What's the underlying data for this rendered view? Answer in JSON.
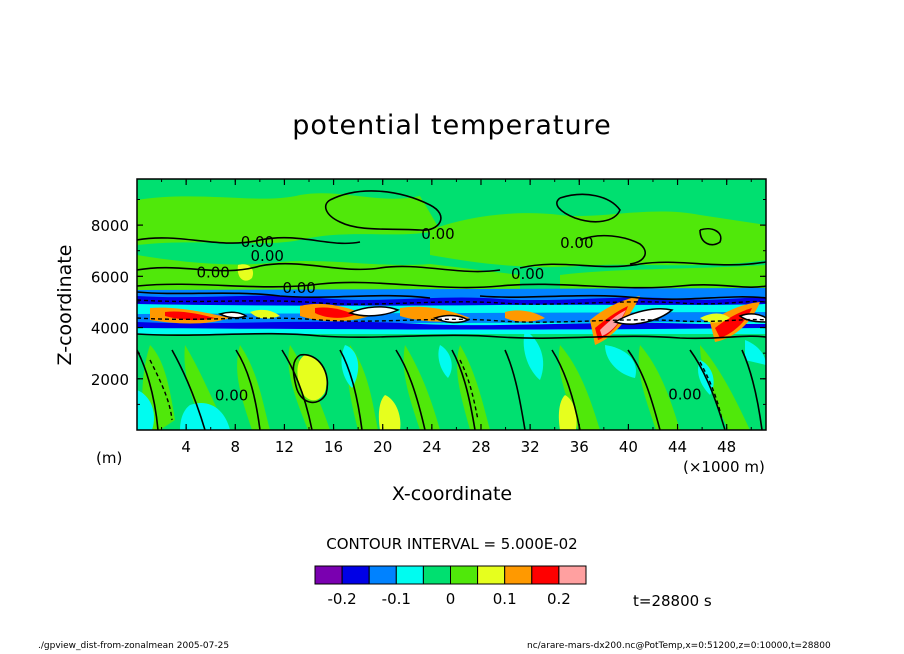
{
  "chart_data": {
    "type": "heatmap",
    "title": "potential temperature",
    "xlabel": "X-coordinate",
    "ylabel": "Z-coordinate",
    "x_unit_left": "(m)",
    "x_unit_right": "(×1000 m)",
    "x_ticks": [
      "4",
      "8",
      "12",
      "16",
      "20",
      "24",
      "28",
      "32",
      "36",
      "40",
      "44",
      "48"
    ],
    "x_tick_values": [
      4,
      8,
      12,
      16,
      20,
      24,
      28,
      32,
      36,
      40,
      44,
      48
    ],
    "xlim": [
      0,
      51.2
    ],
    "y_ticks": [
      "2000",
      "4000",
      "6000",
      "8000"
    ],
    "y_tick_values": [
      2000,
      4000,
      6000,
      8000
    ],
    "ylim": [
      0,
      9800
    ],
    "contour_labels": [
      {
        "text": "0.00",
        "x": 24.5,
        "z": 7450
      },
      {
        "text": "0.00",
        "x": 35.8,
        "z": 7100
      },
      {
        "text": "0.00",
        "x": 9.8,
        "z": 7150
      },
      {
        "text": "0.00",
        "x": 10.6,
        "z": 6600
      },
      {
        "text": "0.00",
        "x": 6.2,
        "z": 5950
      },
      {
        "text": "0.00",
        "x": 31.8,
        "z": 5900
      },
      {
        "text": "0.00",
        "x": 13.2,
        "z": 5350
      },
      {
        "text": "0.00",
        "x": 7.7,
        "z": 1150
      },
      {
        "text": "0.00",
        "x": 44.6,
        "z": 1200
      }
    ],
    "colorbar": {
      "colors": [
        "#7a00b0",
        "#0000e6",
        "#0082ff",
        "#00fcf0",
        "#00e070",
        "#50e80a",
        "#e6ff1e",
        "#ff9900",
        "#ff0000",
        "#ffa0a0"
      ],
      "labels": [
        "-0.2",
        "-0.1",
        "0",
        "0.1",
        "0.2"
      ],
      "label_values": [
        -0.2,
        -0.1,
        0,
        0.1,
        0.2
      ]
    },
    "contour_interval": "CONTOUR INTERVAL = 5.000E-02",
    "time": "t=28800 s"
  },
  "footer": {
    "left": "./gpview_dist-from-zonalmean  2005-07-25",
    "right": "nc/arare-mars-dx200.nc@PotTemp,x=0:51200,z=0:10000,t=28800"
  }
}
